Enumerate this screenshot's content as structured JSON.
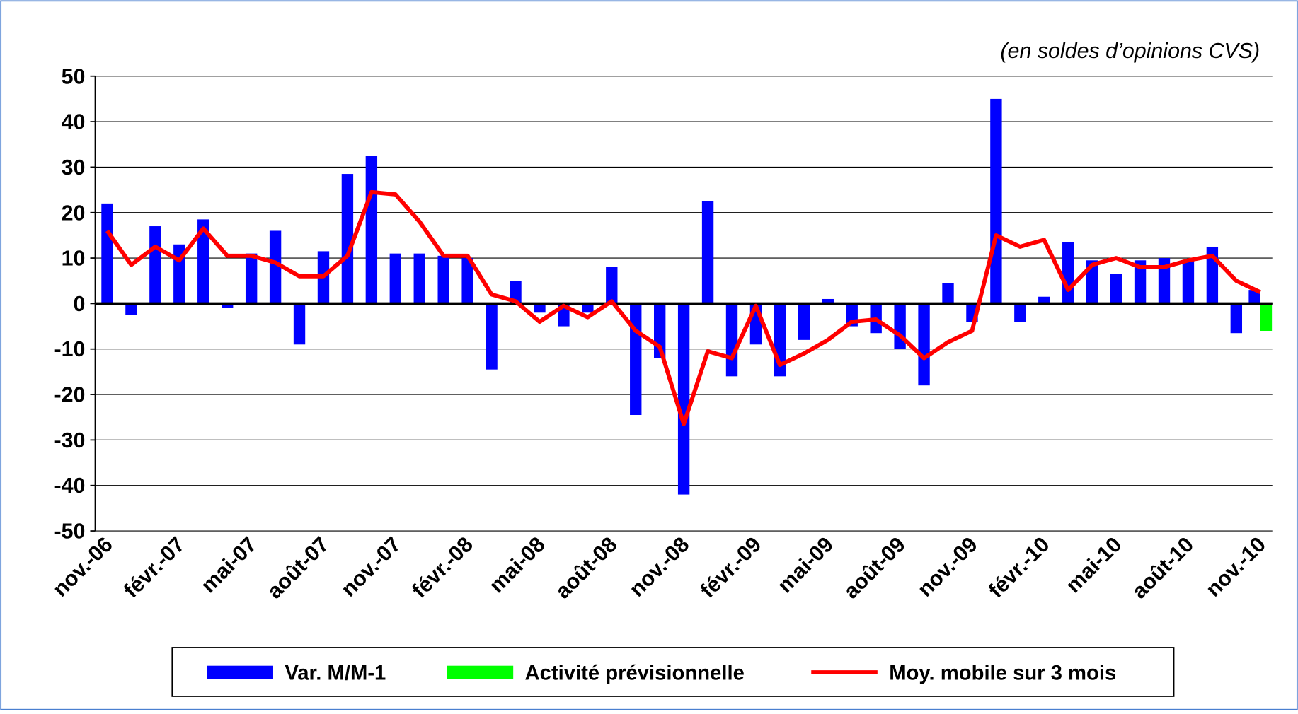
{
  "chart_data": {
    "type": "bar",
    "subtitle": "(en soldes d’opinions CVS)",
    "categories": [
      "nov.-06",
      null,
      null,
      "févr.-07",
      null,
      null,
      "mai-07",
      null,
      null,
      "août-07",
      null,
      null,
      "nov.-07",
      null,
      null,
      "févr.-08",
      null,
      null,
      "mai-08",
      null,
      null,
      "août-08",
      null,
      null,
      "nov.-08",
      null,
      null,
      "févr.-09",
      null,
      null,
      "mai-09",
      null,
      null,
      "août-09",
      null,
      null,
      "nov.-09",
      null,
      null,
      "févr.-10",
      null,
      null,
      "mai-10",
      null,
      null,
      "août-10",
      null,
      null,
      "nov.-10"
    ],
    "series": [
      {
        "name": "Var. M/M-1",
        "type": "bar",
        "color": "#0000ff",
        "values": [
          22,
          -2.5,
          17,
          13,
          18.5,
          -1,
          11,
          16,
          -9,
          11.5,
          28.5,
          32.5,
          11,
          11,
          10.5,
          10,
          -14.5,
          5,
          -2,
          -5,
          -2,
          8,
          -24.5,
          -12,
          -42,
          22.5,
          -16,
          -9,
          -16,
          -8,
          1,
          -5,
          -6.5,
          -10,
          -18,
          4.5,
          -4,
          45,
          -4,
          1.5,
          13.5,
          9.5,
          6.5,
          9.5,
          10,
          9.5,
          12.5,
          -6.5,
          3
        ]
      },
      {
        "name": "Activité prévisionnelle",
        "type": "bar",
        "color": "#00ff00",
        "values": [
          null,
          null,
          null,
          null,
          null,
          null,
          null,
          null,
          null,
          null,
          null,
          null,
          null,
          null,
          null,
          null,
          null,
          null,
          null,
          null,
          null,
          null,
          null,
          null,
          null,
          null,
          null,
          null,
          null,
          null,
          null,
          null,
          null,
          null,
          null,
          null,
          null,
          null,
          null,
          null,
          null,
          null,
          null,
          null,
          null,
          null,
          null,
          null,
          -6
        ]
      },
      {
        "name": "Moy. mobile sur 3 mois",
        "type": "line",
        "color": "#ff0000",
        "values": [
          16,
          8.5,
          12.5,
          9.5,
          16.5,
          10.5,
          10.5,
          9,
          6,
          6,
          10.5,
          24.5,
          24,
          18,
          10.5,
          10.5,
          2,
          0.5,
          -4,
          -0.5,
          -3,
          0.5,
          -6,
          -9.5,
          -26.5,
          -10.5,
          -12,
          -0.5,
          -13.5,
          -11,
          -8,
          -4,
          -3.5,
          -7,
          -12,
          -8.5,
          -6,
          15,
          12.5,
          14,
          3,
          8.5,
          10,
          8,
          8,
          9.5,
          10.5,
          5,
          2.5
        ]
      }
    ],
    "ylim": [
      -50,
      50
    ],
    "yticks": [
      -50,
      -40,
      -30,
      -20,
      -10,
      0,
      10,
      20,
      30,
      40,
      50
    ],
    "grid": true,
    "legend": "bottom"
  }
}
